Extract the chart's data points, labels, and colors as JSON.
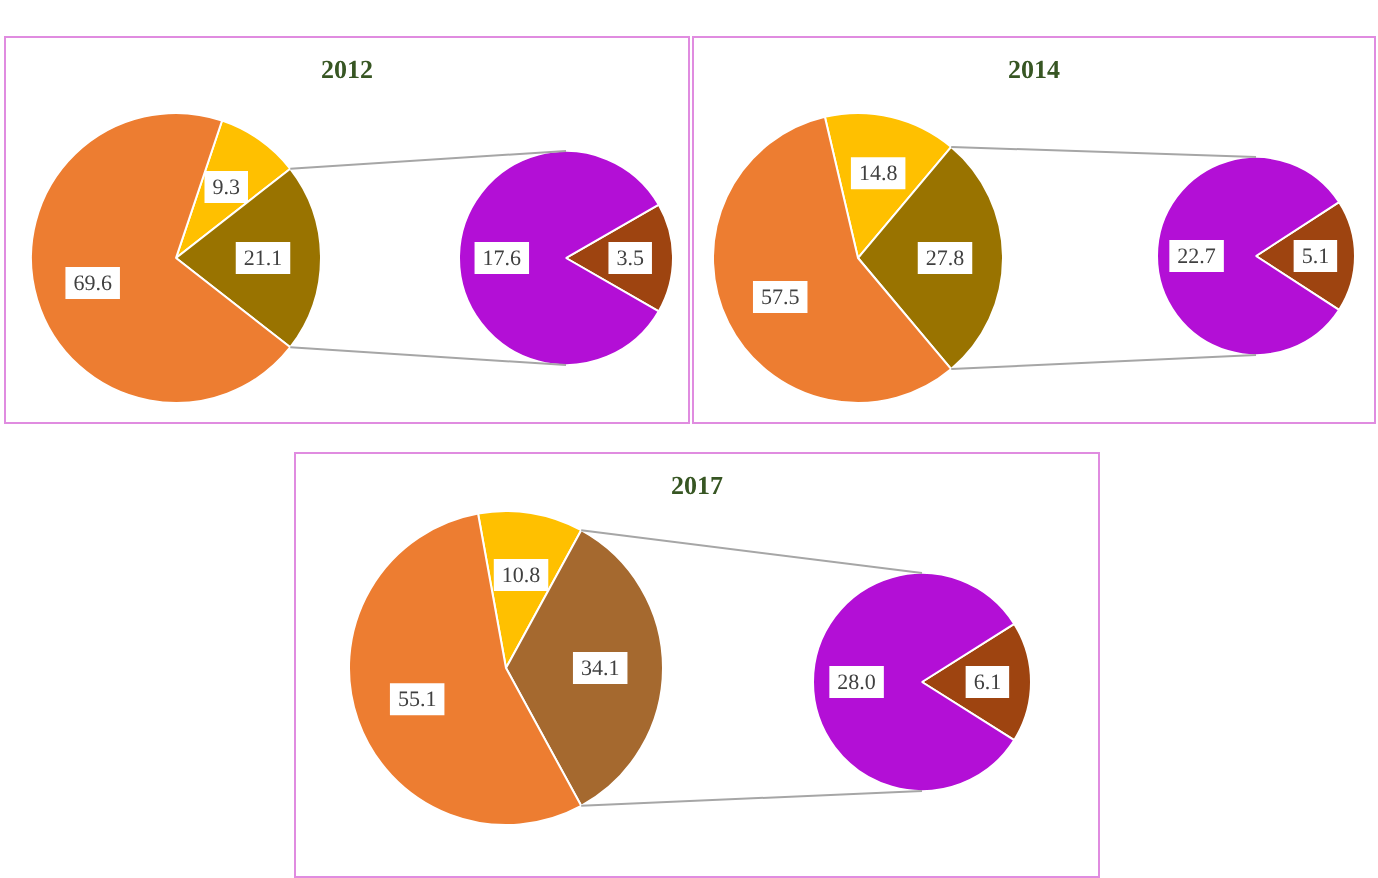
{
  "chart_data": [
    {
      "type": "pie",
      "title": "2012",
      "data_labels": true,
      "series": [
        {
          "values": [
            9.3,
            21.1,
            69.6
          ],
          "colors": [
            "#ffc000",
            "#997300",
            "#ed7d31"
          ]
        },
        {
          "values": [
            3.5,
            17.6
          ],
          "colors": [
            "#9e4410",
            "#b30fd6"
          ]
        }
      ]
    },
    {
      "type": "pie",
      "title": "2014",
      "data_labels": true,
      "series": [
        {
          "values": [
            14.8,
            27.8,
            57.5
          ],
          "colors": [
            "#ffc000",
            "#997300",
            "#ed7d31"
          ]
        },
        {
          "values": [
            5.1,
            22.7
          ],
          "colors": [
            "#9e4410",
            "#b30fd6"
          ]
        }
      ]
    },
    {
      "type": "pie",
      "title": "2017",
      "data_labels": true,
      "series": [
        {
          "values": [
            10.8,
            34.1,
            55.1
          ],
          "colors": [
            "#ffc000",
            "#a5692f",
            "#ed7d31"
          ]
        },
        {
          "values": [
            6.1,
            28.0
          ],
          "value_labels": [
            "6.1",
            "28.0"
          ],
          "colors": [
            "#9e4410",
            "#b30fd6"
          ]
        }
      ]
    }
  ]
}
